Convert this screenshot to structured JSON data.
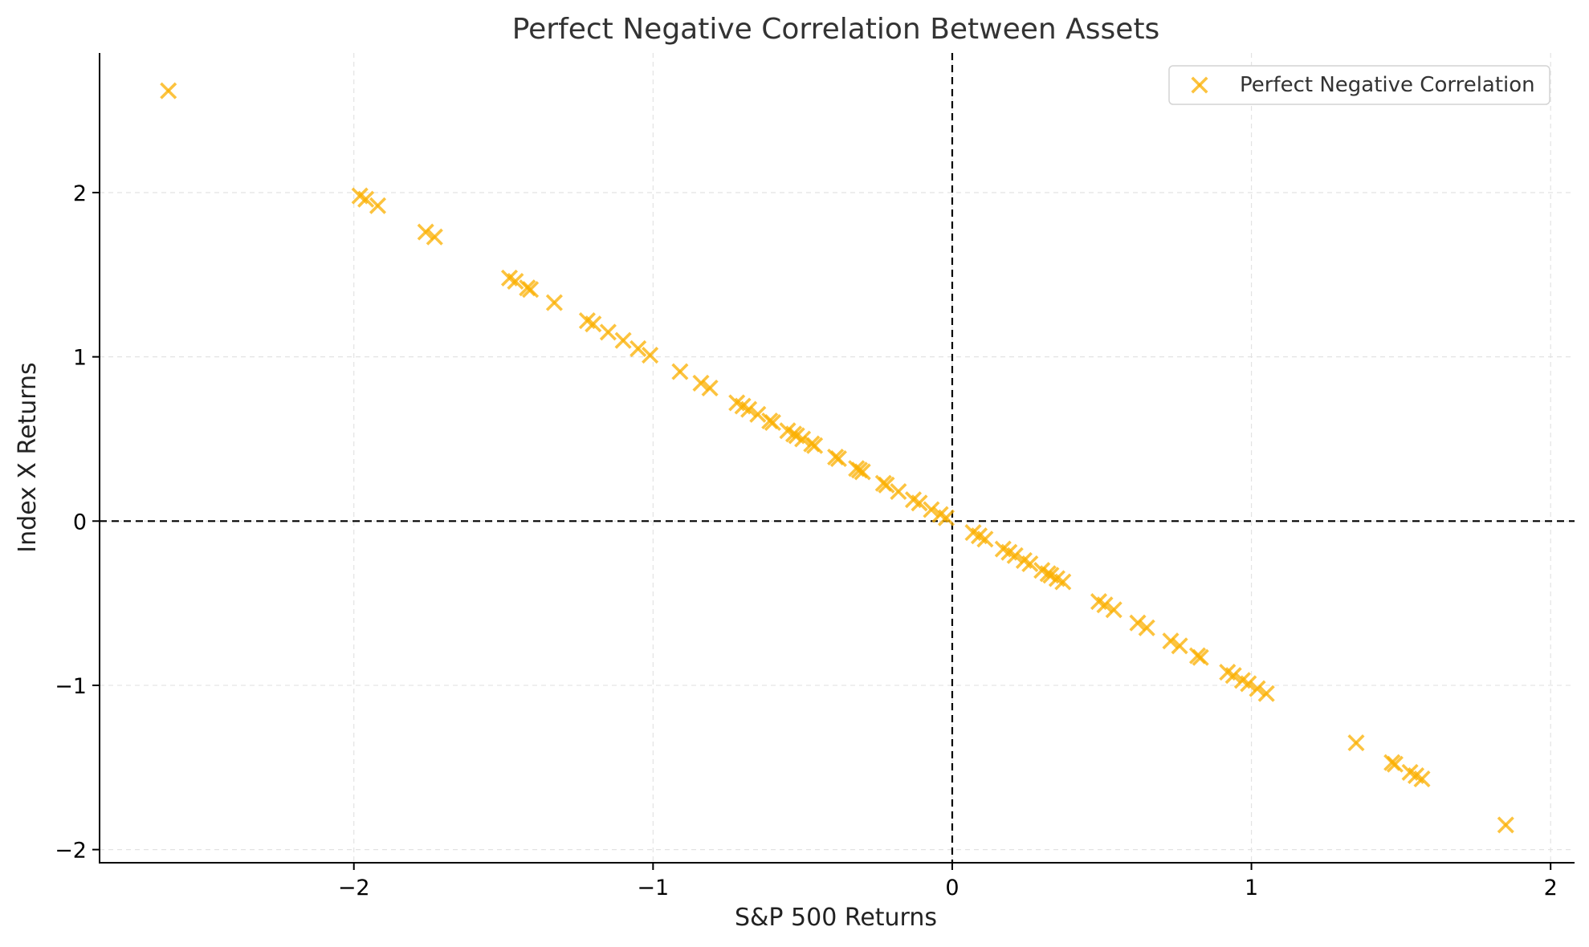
{
  "chart_data": {
    "type": "scatter",
    "title": "Perfect Negative Correlation Between Assets",
    "xlabel": "S&P 500 Returns",
    "ylabel": "Index X Returns",
    "xlim": [
      -2.85,
      2.08
    ],
    "ylim": [
      -2.08,
      2.85
    ],
    "xticks": [
      -2,
      -1,
      0,
      1,
      2
    ],
    "yticks": [
      -2,
      -1,
      0,
      1,
      2
    ],
    "xtick_labels": [
      "−2",
      "−1",
      "0",
      "1",
      "2"
    ],
    "ytick_labels": [
      "−2",
      "−1",
      "0",
      "1",
      "2"
    ],
    "grid": true,
    "reference_lines": {
      "x": 0,
      "y": 0,
      "style": "dashed",
      "color": "#000000"
    },
    "legend": {
      "position": "top-right"
    },
    "marker": "x",
    "series": [
      {
        "name": "Perfect Negative Correlation",
        "color": "#fbb000",
        "x": [
          -2.62,
          -1.98,
          -1.96,
          -1.92,
          -1.76,
          -1.73,
          -1.48,
          -1.46,
          -1.42,
          -1.41,
          -1.33,
          -1.22,
          -1.2,
          -1.15,
          -1.1,
          -1.05,
          -1.01,
          -0.91,
          -0.84,
          -0.81,
          -0.72,
          -0.7,
          -0.68,
          -0.65,
          -0.61,
          -0.6,
          -0.55,
          -0.53,
          -0.52,
          -0.5,
          -0.47,
          -0.46,
          -0.39,
          -0.38,
          -0.32,
          -0.31,
          -0.3,
          -0.23,
          -0.22,
          -0.18,
          -0.13,
          -0.11,
          -0.07,
          -0.04,
          -0.02,
          0.07,
          0.09,
          0.11,
          0.17,
          0.19,
          0.21,
          0.24,
          0.26,
          0.3,
          0.32,
          0.33,
          0.35,
          0.37,
          0.49,
          0.51,
          0.54,
          0.62,
          0.65,
          0.73,
          0.76,
          0.82,
          0.83,
          0.92,
          0.94,
          0.97,
          0.99,
          1.02,
          1.05,
          1.35,
          1.47,
          1.48,
          1.53,
          1.55,
          1.57,
          1.85
        ],
        "y": [
          2.62,
          1.98,
          1.96,
          1.92,
          1.76,
          1.73,
          1.48,
          1.46,
          1.42,
          1.41,
          1.33,
          1.22,
          1.2,
          1.15,
          1.1,
          1.05,
          1.01,
          0.91,
          0.84,
          0.81,
          0.72,
          0.7,
          0.68,
          0.65,
          0.61,
          0.6,
          0.55,
          0.53,
          0.52,
          0.5,
          0.47,
          0.46,
          0.39,
          0.38,
          0.32,
          0.31,
          0.3,
          0.23,
          0.22,
          0.18,
          0.13,
          0.11,
          0.07,
          0.04,
          0.02,
          -0.07,
          -0.09,
          -0.11,
          -0.17,
          -0.19,
          -0.21,
          -0.24,
          -0.26,
          -0.3,
          -0.32,
          -0.33,
          -0.35,
          -0.37,
          -0.49,
          -0.51,
          -0.54,
          -0.62,
          -0.65,
          -0.73,
          -0.76,
          -0.82,
          -0.83,
          -0.92,
          -0.94,
          -0.97,
          -0.99,
          -1.02,
          -1.05,
          -1.35,
          -1.47,
          -1.48,
          -1.53,
          -1.55,
          -1.57,
          -1.85
        ]
      }
    ]
  }
}
